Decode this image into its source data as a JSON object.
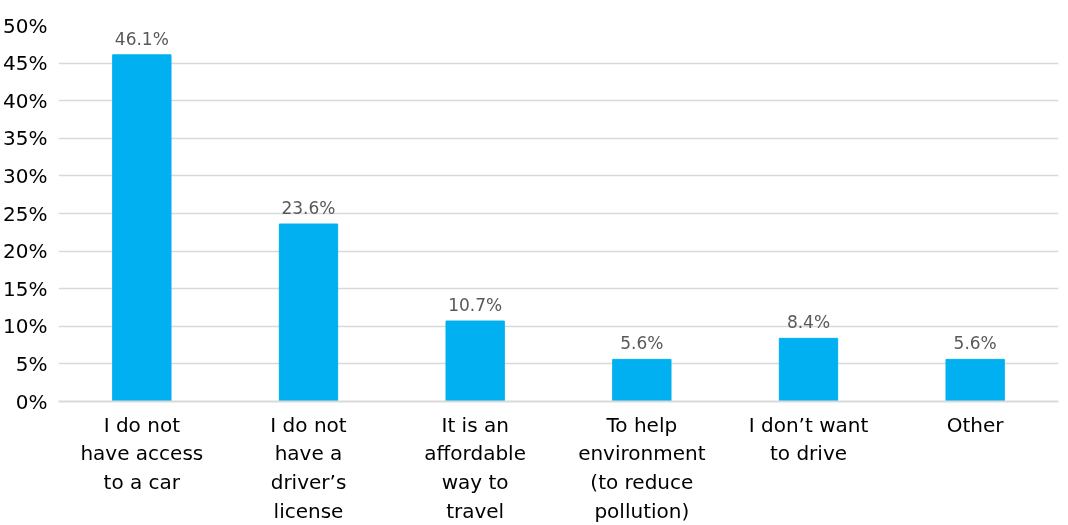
{
  "chart_data": {
    "type": "bar",
    "categories": [
      "I do not have access to a car",
      "I do not have a driver’s license",
      "It is an affordable way to travel",
      "To help environment (to reduce pollution)",
      "I don’t want to drive",
      "Other"
    ],
    "values": [
      46.1,
      23.6,
      10.7,
      5.6,
      8.4,
      5.6
    ],
    "value_labels": [
      "46.1%",
      "23.6%",
      "10.7%",
      "5.6%",
      "8.4%",
      "5.6%"
    ],
    "color": "#00b0f0",
    "ylim": [
      0,
      50
    ],
    "yticks": [
      {
        "value": 0,
        "label": "0%"
      },
      {
        "value": 5,
        "label": "5%"
      },
      {
        "value": 10,
        "label": "10%"
      },
      {
        "value": 15,
        "label": "15%"
      },
      {
        "value": 20,
        "label": "20%"
      },
      {
        "value": 25,
        "label": "25%"
      },
      {
        "value": 30,
        "label": "30%"
      },
      {
        "value": 35,
        "label": "35%"
      },
      {
        "value": 40,
        "label": "40%"
      },
      {
        "value": 45,
        "label": "45%"
      },
      {
        "value": 50,
        "label": "50%"
      }
    ],
    "grid": "y"
  }
}
